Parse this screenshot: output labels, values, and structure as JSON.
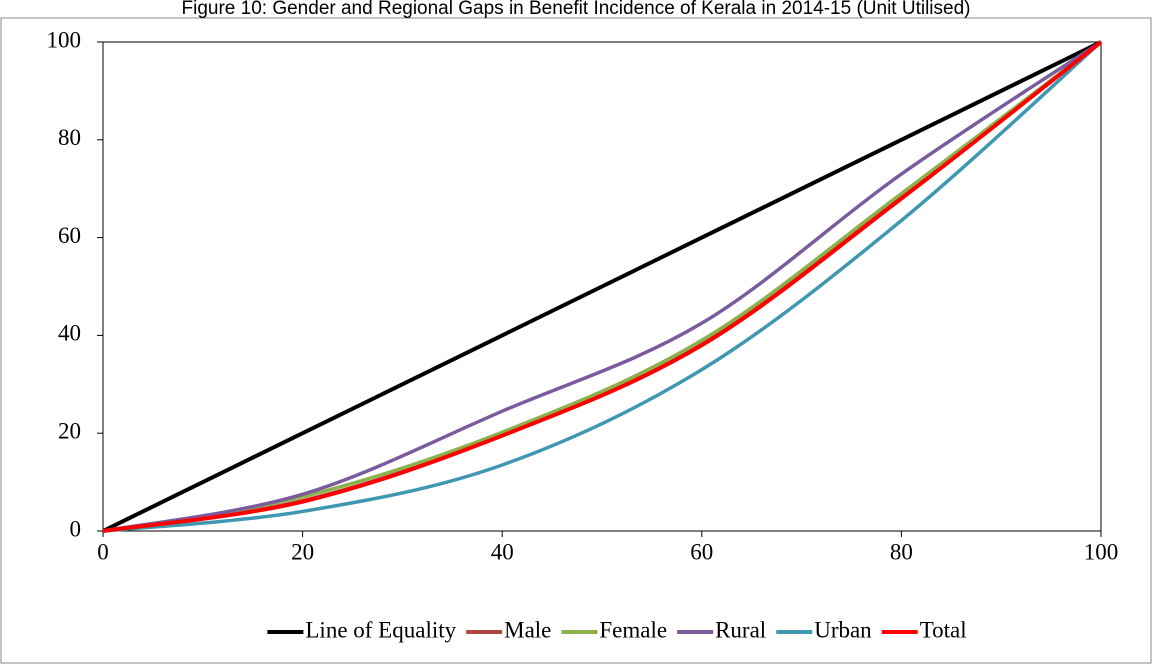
{
  "chart_data": {
    "type": "line",
    "title": "Figure 10: Gender and Regional Gaps in Benefit Incidence of Kerala in 2014-15 (Unit Utilised)",
    "x": [
      0,
      20,
      40,
      60,
      80,
      100
    ],
    "series": [
      {
        "name": "Line of Equality",
        "color": "#000000",
        "values": [
          0,
          20,
          40,
          60,
          80,
          100
        ]
      },
      {
        "name": "Male",
        "color": "#b0473e",
        "values": [
          0,
          6.2,
          19.6,
          38.2,
          68.3,
          100
        ]
      },
      {
        "name": "Female",
        "color": "#8cb04a",
        "values": [
          0,
          7,
          20.2,
          39,
          69,
          100
        ]
      },
      {
        "name": "Rural",
        "color": "#7a5c9e",
        "values": [
          0,
          7.5,
          24.5,
          42.5,
          73,
          100
        ]
      },
      {
        "name": "Urban",
        "color": "#3f97b1",
        "values": [
          0,
          4,
          13.5,
          33,
          63.5,
          100
        ]
      },
      {
        "name": "Total",
        "color": "#ff0000",
        "values": [
          0,
          6,
          19.5,
          38,
          68,
          100
        ]
      }
    ],
    "xlim": [
      0,
      100
    ],
    "xticks": [
      0,
      20,
      40,
      60,
      80,
      100
    ],
    "ylim": [
      0,
      100
    ],
    "yticks": [
      0,
      20,
      40,
      60,
      80,
      100
    ],
    "legend": "bottom"
  }
}
